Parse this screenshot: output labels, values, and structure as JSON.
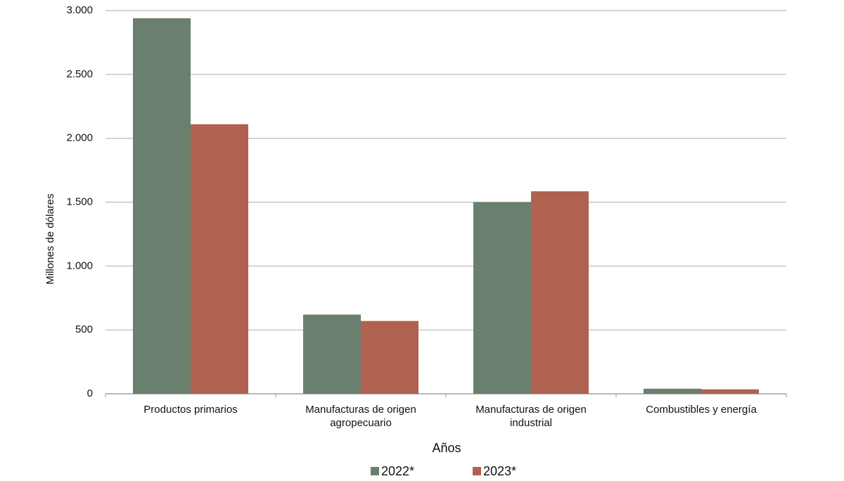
{
  "chart_data": {
    "type": "bar",
    "y_label": "Millones de dólares",
    "x_label": "Años",
    "categories": [
      "Productos primarios",
      "Manufacturas de origen agropecuario",
      "Manufacturas de origen industrial",
      "Combustibles y energía"
    ],
    "series": [
      {
        "name": "2022*",
        "color": "#6a7f6d",
        "values": [
          2940,
          620,
          1500,
          40
        ]
      },
      {
        "name": "2023*",
        "color": "#b06150",
        "values": [
          2110,
          570,
          1585,
          35
        ]
      }
    ],
    "ylim": [
      0,
      3000
    ],
    "yticks": [
      0,
      500,
      {
        "value": 1000,
        "label": "1.000"
      },
      {
        "value": 1500,
        "label": "1.500"
      },
      {
        "value": 2000,
        "label": "2.000"
      },
      {
        "value": 2500,
        "label": "2.500"
      },
      {
        "value": 3000,
        "label": "3.000"
      }
    ],
    "grid": true,
    "legend": "bottom"
  }
}
